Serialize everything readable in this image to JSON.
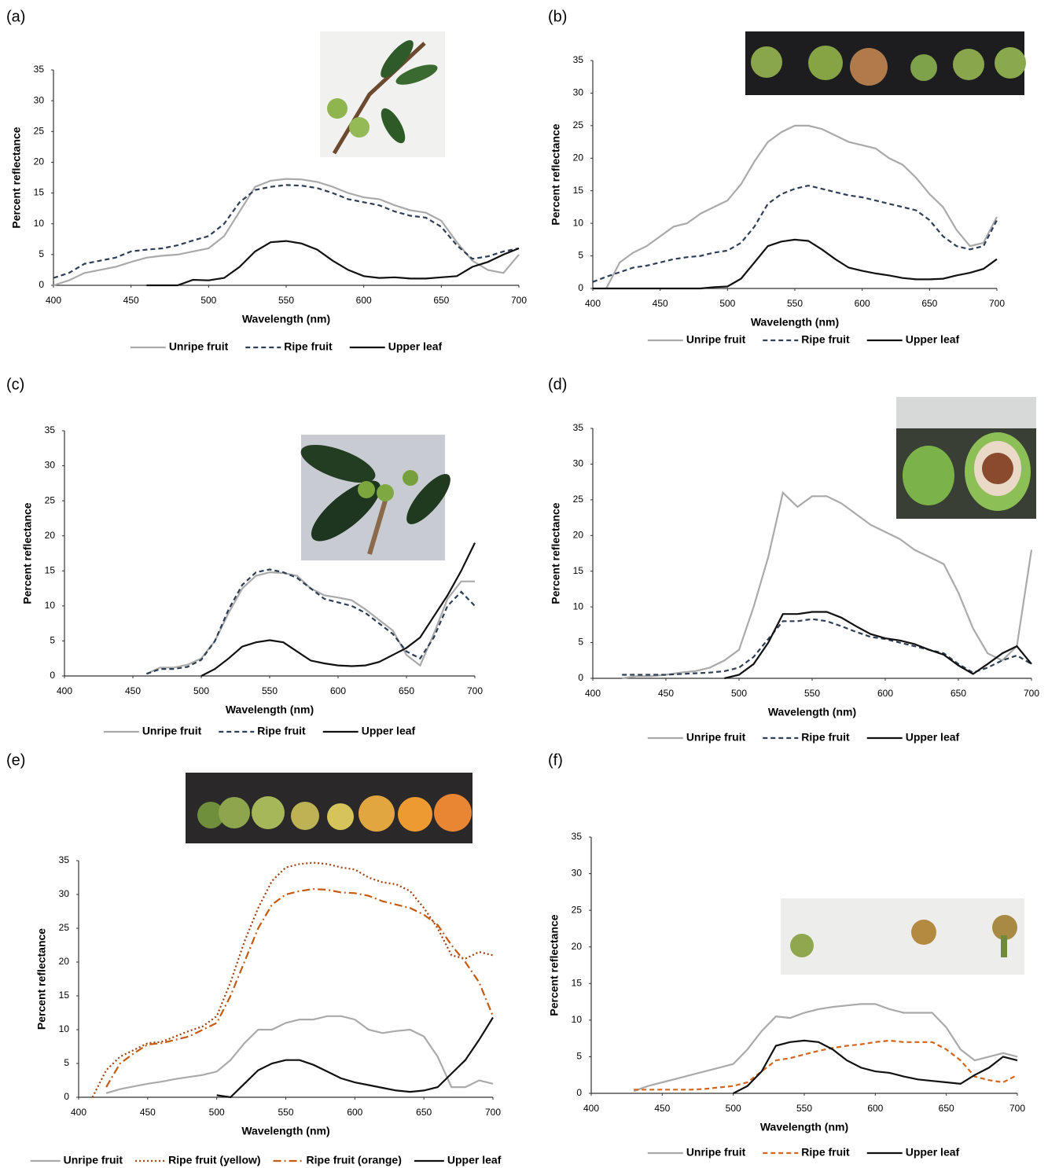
{
  "chart_data": [
    {
      "type": "line",
      "label": "(a)",
      "xlabel": "Wavelength (nm)",
      "ylabel": "Percent reflectance",
      "x": [
        400,
        410,
        420,
        430,
        440,
        450,
        460,
        470,
        480,
        490,
        500,
        510,
        520,
        530,
        540,
        550,
        560,
        570,
        580,
        590,
        600,
        610,
        620,
        630,
        640,
        650,
        660,
        670,
        680,
        690,
        700
      ],
      "xlim": [
        400,
        700
      ],
      "xticks": [
        400,
        450,
        500,
        550,
        600,
        650,
        700
      ],
      "ylim": [
        0,
        35
      ],
      "yticks": [
        0,
        5,
        10,
        15,
        20,
        25,
        30,
        35
      ],
      "series": [
        {
          "name": "Unripe fruit",
          "color": "#aaaaaa",
          "dash": "solid",
          "values": [
            0,
            0.8,
            2,
            2.5,
            3,
            3.8,
            4.5,
            4.8,
            5,
            5.5,
            6,
            8,
            12,
            16,
            17,
            17.3,
            17.2,
            16.8,
            16,
            15,
            14.3,
            14,
            13,
            12.2,
            11.8,
            10.5,
            7,
            4,
            2.5,
            2,
            5
          ]
        },
        {
          "name": "Ripe fruit",
          "color": "#2e3e55",
          "dash": "dashed",
          "values": [
            1.2,
            2,
            3.5,
            4,
            4.5,
            5.5,
            5.8,
            6,
            6.5,
            7.3,
            8,
            10,
            13.5,
            15.5,
            16,
            16.3,
            16.2,
            15.8,
            15,
            14,
            13.5,
            13,
            12,
            11.3,
            11,
            9.5,
            6.5,
            4.3,
            4.7,
            5.5,
            6
          ]
        },
        {
          "name": "Upper leaf",
          "color": "#111111",
          "dash": "solid",
          "values": [
            null,
            null,
            null,
            null,
            null,
            null,
            0,
            0,
            0,
            0.9,
            0.8,
            1.2,
            3,
            5.5,
            7,
            7.2,
            6.8,
            5.8,
            4,
            2.5,
            1.5,
            1.2,
            1.3,
            1.1,
            1.1,
            1.3,
            1.5,
            3,
            3.8,
            5,
            6
          ]
        }
      ]
    },
    {
      "type": "line",
      "label": "(b)",
      "xlabel": "Wavelength (nm)",
      "ylabel": "Percent reflectance",
      "x": [
        400,
        410,
        420,
        430,
        440,
        450,
        460,
        470,
        480,
        490,
        500,
        510,
        520,
        530,
        540,
        550,
        560,
        570,
        580,
        590,
        600,
        610,
        620,
        630,
        640,
        650,
        660,
        670,
        680,
        690,
        700
      ],
      "xlim": [
        400,
        700
      ],
      "xticks": [
        400,
        450,
        500,
        550,
        600,
        650,
        700
      ],
      "ylim": [
        0,
        35
      ],
      "yticks": [
        0,
        5,
        10,
        15,
        20,
        25,
        30,
        35
      ],
      "series": [
        {
          "name": "Unripe fruit",
          "color": "#aaaaaa",
          "dash": "solid",
          "values": [
            null,
            0,
            4,
            5.5,
            6.5,
            8,
            9.5,
            10,
            11.5,
            12.5,
            13.5,
            16,
            19.5,
            22.5,
            24,
            25,
            25,
            24.5,
            23.5,
            22.5,
            22,
            21.5,
            20,
            19,
            17,
            14.5,
            12.5,
            9,
            6.5,
            7,
            11
          ]
        },
        {
          "name": "Ripe fruit",
          "color": "#2e3e55",
          "dash": "dashed",
          "values": [
            1,
            1.8,
            2.5,
            3.2,
            3.5,
            4,
            4.5,
            4.8,
            5,
            5.5,
            5.8,
            7,
            9.5,
            13,
            14.5,
            15.3,
            15.8,
            15.3,
            14.8,
            14.3,
            14,
            13.5,
            13,
            12.5,
            12,
            10.5,
            8,
            6.5,
            6,
            6.5,
            10.5
          ]
        },
        {
          "name": "Upper leaf",
          "color": "#111111",
          "dash": "solid",
          "values": [
            0,
            0,
            0,
            0,
            0,
            0,
            0,
            0,
            0,
            0.2,
            0.3,
            1.5,
            4,
            6.5,
            7.2,
            7.5,
            7.3,
            6,
            4.5,
            3.2,
            2.7,
            2.3,
            2,
            1.6,
            1.4,
            1.4,
            1.5,
            2,
            2.4,
            3,
            4.5
          ]
        }
      ]
    },
    {
      "type": "line",
      "label": "(c)",
      "xlabel": "Wavelength (nm)",
      "ylabel": "Percent reflectance",
      "x": [
        400,
        410,
        420,
        430,
        440,
        450,
        460,
        470,
        480,
        490,
        500,
        510,
        520,
        530,
        540,
        550,
        560,
        570,
        580,
        590,
        600,
        610,
        620,
        630,
        640,
        650,
        660,
        670,
        680,
        690,
        700
      ],
      "xlim": [
        400,
        700
      ],
      "xticks": [
        400,
        450,
        500,
        550,
        600,
        650,
        700
      ],
      "ylim": [
        0,
        35
      ],
      "yticks": [
        0,
        5,
        10,
        15,
        20,
        25,
        30,
        35
      ],
      "series": [
        {
          "name": "Unripe fruit",
          "color": "#aaaaaa",
          "dash": "solid",
          "values": [
            null,
            null,
            null,
            null,
            null,
            null,
            0.3,
            1.2,
            1.2,
            1.6,
            2.5,
            5,
            9,
            12.5,
            14.3,
            14.8,
            14.7,
            14.3,
            12.5,
            11.5,
            11.2,
            10.8,
            9.5,
            8,
            6.5,
            3,
            1.5,
            6,
            11,
            13.5,
            13.5
          ]
        },
        {
          "name": "Ripe fruit",
          "color": "#2e3e55",
          "dash": "dashed",
          "values": [
            null,
            null,
            null,
            null,
            null,
            null,
            0.3,
            1,
            1,
            1.3,
            2.3,
            5,
            9.5,
            13,
            14.8,
            15.2,
            14.8,
            14,
            12.5,
            11,
            10.5,
            10,
            9,
            7.5,
            6,
            3.5,
            2.5,
            5.5,
            10,
            12,
            10
          ]
        },
        {
          "name": "Upper leaf",
          "color": "#111111",
          "dash": "solid",
          "values": [
            null,
            null,
            null,
            null,
            null,
            null,
            null,
            null,
            null,
            null,
            0,
            1,
            2.5,
            4.2,
            4.8,
            5.1,
            4.8,
            3.5,
            2.2,
            1.8,
            1.5,
            1.4,
            1.5,
            2,
            3,
            4,
            5.5,
            8.5,
            11.5,
            15,
            19
          ]
        }
      ]
    },
    {
      "type": "line",
      "label": "(d)",
      "xlabel": "Wavelength (nm)",
      "ylabel": "Percent reflectance",
      "x": [
        400,
        410,
        420,
        430,
        440,
        450,
        460,
        470,
        480,
        490,
        500,
        510,
        520,
        530,
        540,
        550,
        560,
        570,
        580,
        590,
        600,
        610,
        620,
        630,
        640,
        650,
        660,
        670,
        680,
        690,
        700
      ],
      "xlim": [
        400,
        700
      ],
      "xticks": [
        400,
        450,
        500,
        550,
        600,
        650,
        700
      ],
      "ylim": [
        0,
        35
      ],
      "yticks": [
        0,
        5,
        10,
        15,
        20,
        25,
        30,
        35
      ],
      "series": [
        {
          "name": "Unripe fruit",
          "color": "#aaaaaa",
          "dash": "solid",
          "values": [
            null,
            null,
            0,
            0.3,
            0.3,
            0.5,
            0.8,
            1,
            1.5,
            2.5,
            4,
            10,
            17,
            26,
            24,
            25.5,
            25.5,
            24.5,
            23,
            21.5,
            20.5,
            19.5,
            18,
            17,
            16,
            12,
            7,
            3.5,
            2.5,
            4.5,
            18
          ]
        },
        {
          "name": "Ripe fruit",
          "color": "#2e3e55",
          "dash": "dashed",
          "values": [
            null,
            null,
            0.5,
            0.5,
            0.5,
            0.5,
            0.6,
            0.7,
            0.8,
            1,
            1.5,
            3,
            5.5,
            8,
            8,
            8.3,
            8,
            7.3,
            6.5,
            5.8,
            5.5,
            5,
            4.5,
            4,
            3.5,
            2,
            0.8,
            1.5,
            2.5,
            3.2,
            2
          ]
        },
        {
          "name": "Upper leaf",
          "color": "#111111",
          "dash": "solid",
          "values": [
            null,
            null,
            null,
            null,
            null,
            null,
            null,
            null,
            null,
            0,
            0.5,
            2,
            5,
            9,
            9,
            9.3,
            9.3,
            8.5,
            7.3,
            6.2,
            5.6,
            5.3,
            4.8,
            4,
            3.3,
            1.8,
            0.6,
            2,
            3.5,
            4.5,
            2
          ]
        }
      ]
    },
    {
      "type": "line",
      "label": "(e)",
      "xlabel": "Wavelength (nm)",
      "ylabel": "Percent reflectance",
      "x": [
        400,
        410,
        420,
        430,
        440,
        450,
        460,
        470,
        480,
        490,
        500,
        510,
        520,
        530,
        540,
        550,
        560,
        570,
        580,
        590,
        600,
        610,
        620,
        630,
        640,
        650,
        660,
        670,
        680,
        690,
        700
      ],
      "xlim": [
        400,
        700
      ],
      "xticks": [
        400,
        450,
        500,
        550,
        600,
        650,
        700
      ],
      "ylim": [
        0,
        35
      ],
      "yticks": [
        0,
        5,
        10,
        15,
        20,
        25,
        30,
        35
      ],
      "series": [
        {
          "name": "Unripe fruit",
          "color": "#aaaaaa",
          "dash": "solid",
          "values": [
            null,
            null,
            0.6,
            1.2,
            1.6,
            2,
            2.3,
            2.7,
            3,
            3.3,
            3.8,
            5.5,
            8,
            10,
            10,
            11,
            11.5,
            11.5,
            12,
            12,
            11.5,
            10,
            9.5,
            9.8,
            10,
            9,
            6,
            1.5,
            1.5,
            2.5,
            2
          ]
        },
        {
          "name": "Ripe fruit (yellow)",
          "color": "#a0400f",
          "dash": "dotted",
          "values": [
            null,
            0,
            4,
            6,
            7,
            8,
            8.2,
            9,
            9.8,
            10.5,
            12,
            17,
            23,
            28,
            32,
            34,
            34.5,
            34.7,
            34.5,
            34,
            33.7,
            32.5,
            31.8,
            31.5,
            30.5,
            28,
            25,
            21,
            20.5,
            21.5,
            21
          ]
        },
        {
          "name": "Ripe fruit (orange)",
          "color": "#c55a11",
          "dash": "dashdot",
          "values": [
            null,
            null,
            1.5,
            5,
            6.5,
            7.8,
            8,
            8.5,
            9,
            10,
            11,
            15,
            20,
            25,
            28.5,
            30,
            30.5,
            30.8,
            30.7,
            30.3,
            30.2,
            29.8,
            29,
            28.5,
            28,
            27,
            25.5,
            22.5,
            20,
            17,
            12
          ]
        },
        {
          "name": "Upper leaf",
          "color": "#111111",
          "dash": "solid",
          "values": [
            null,
            null,
            null,
            null,
            null,
            null,
            null,
            null,
            null,
            null,
            0.3,
            0,
            2,
            4,
            5,
            5.5,
            5.5,
            4.8,
            3.8,
            2.8,
            2.2,
            1.8,
            1.4,
            1,
            0.8,
            1,
            1.5,
            3.5,
            5.5,
            8.5,
            11.8
          ]
        }
      ]
    },
    {
      "type": "line",
      "label": "(f)",
      "xlabel": "Wavelength (nm)",
      "ylabel": "Percent reflectance",
      "x": [
        400,
        410,
        420,
        430,
        440,
        450,
        460,
        470,
        480,
        490,
        500,
        510,
        520,
        530,
        540,
        550,
        560,
        570,
        580,
        590,
        600,
        610,
        620,
        630,
        640,
        650,
        660,
        670,
        680,
        690,
        700
      ],
      "xlim": [
        400,
        700
      ],
      "xticks": [
        400,
        450,
        500,
        550,
        600,
        650,
        700
      ],
      "ylim": [
        0,
        35
      ],
      "yticks": [
        0,
        5,
        10,
        15,
        20,
        25,
        30,
        35
      ],
      "series": [
        {
          "name": "Unripe fruit",
          "color": "#aaaaaa",
          "dash": "solid",
          "values": [
            null,
            null,
            null,
            0.3,
            1,
            1.5,
            2,
            2.5,
            3,
            3.5,
            4,
            6,
            8.5,
            10.5,
            10.3,
            11,
            11.5,
            11.8,
            12,
            12.2,
            12.2,
            11.5,
            11,
            11,
            11,
            9,
            6,
            4.5,
            5,
            5.5,
            5
          ]
        },
        {
          "name": "Ripe fruit",
          "color": "#d2661c",
          "dash": "dashed",
          "values": [
            null,
            null,
            null,
            0.5,
            0.5,
            0.5,
            0.5,
            0.5,
            0.6,
            0.8,
            1,
            1.5,
            3,
            4.5,
            4.8,
            5.3,
            5.8,
            6.2,
            6.5,
            6.7,
            7,
            7.2,
            7,
            7,
            7,
            6,
            4.5,
            2.3,
            1.8,
            1.5,
            2.5
          ]
        },
        {
          "name": "Upper leaf",
          "color": "#111111",
          "dash": "solid",
          "values": [
            null,
            null,
            null,
            null,
            null,
            null,
            null,
            null,
            null,
            null,
            0,
            1,
            3,
            6.5,
            7,
            7.2,
            7,
            6,
            4.5,
            3.5,
            3,
            2.8,
            2.3,
            1.9,
            1.7,
            1.5,
            1.3,
            2.5,
            3.5,
            5,
            4.5
          ]
        }
      ]
    }
  ]
}
